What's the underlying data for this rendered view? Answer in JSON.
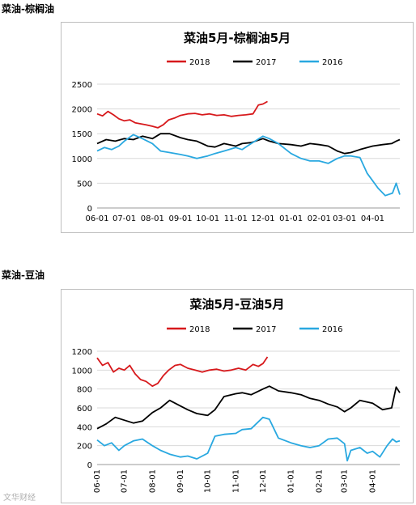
{
  "page": {
    "heading_1": "菜油-棕榈油",
    "heading_2": "菜油-豆油",
    "watermark": "文华财经"
  },
  "colors": {
    "2018": "#d7191c",
    "2017": "#000000",
    "2016": "#29a8e0",
    "grid": "#d9d9d9"
  },
  "chart_data": [
    {
      "type": "line",
      "title": "菜油5月-棕榈油5月",
      "legend_position": "top",
      "grid": true,
      "ylim": [
        0,
        2500
      ],
      "yticks": [
        0,
        500,
        1000,
        1500,
        2000,
        2500
      ],
      "ytick_labels": [
        "0",
        "500",
        "1000",
        "1500",
        "2000",
        "2500"
      ],
      "xlim": [
        0,
        334
      ],
      "xticks": [
        0,
        30,
        61,
        92,
        122,
        153,
        183,
        214,
        245,
        273,
        304
      ],
      "xtick_labels": [
        "06-01",
        "07-01",
        "08-01",
        "09-01",
        "10-01",
        "11-01",
        "12-01",
        "01-01",
        "02-01",
        "03-01",
        "04-01"
      ],
      "x_unit": "days from 06-01",
      "series": [
        {
          "name": "2018",
          "color": "#d7191c",
          "x": [
            0,
            6,
            12,
            18,
            24,
            30,
            36,
            42,
            48,
            54,
            61,
            67,
            73,
            79,
            86,
            92,
            100,
            108,
            116,
            124,
            132,
            140,
            148,
            156,
            164,
            172,
            178,
            183,
            188
          ],
          "y": [
            1900,
            1860,
            1950,
            1880,
            1800,
            1760,
            1780,
            1720,
            1700,
            1680,
            1650,
            1620,
            1680,
            1780,
            1820,
            1870,
            1900,
            1910,
            1880,
            1900,
            1870,
            1880,
            1850,
            1870,
            1880,
            1900,
            2080,
            2100,
            2150
          ]
        },
        {
          "name": "2017",
          "color": "#000000",
          "x": [
            0,
            10,
            20,
            30,
            40,
            50,
            61,
            70,
            80,
            92,
            100,
            110,
            122,
            130,
            140,
            153,
            160,
            170,
            183,
            190,
            200,
            214,
            225,
            235,
            245,
            255,
            265,
            273,
            280,
            290,
            304,
            315,
            325,
            330,
            334
          ],
          "y": [
            1300,
            1380,
            1350,
            1400,
            1380,
            1450,
            1400,
            1500,
            1500,
            1420,
            1380,
            1350,
            1250,
            1230,
            1300,
            1250,
            1300,
            1320,
            1400,
            1350,
            1300,
            1280,
            1250,
            1300,
            1280,
            1250,
            1150,
            1100,
            1120,
            1180,
            1250,
            1280,
            1300,
            1350,
            1380
          ]
        },
        {
          "name": "2016",
          "color": "#29a8e0",
          "x": [
            0,
            8,
            16,
            24,
            30,
            40,
            50,
            61,
            70,
            80,
            92,
            100,
            110,
            122,
            130,
            140,
            153,
            160,
            170,
            183,
            190,
            200,
            214,
            225,
            235,
            245,
            255,
            265,
            273,
            280,
            290,
            298,
            304,
            310,
            318,
            326,
            330,
            334
          ],
          "y": [
            1150,
            1220,
            1180,
            1250,
            1350,
            1480,
            1400,
            1300,
            1150,
            1120,
            1080,
            1050,
            1000,
            1050,
            1100,
            1150,
            1220,
            1180,
            1300,
            1450,
            1400,
            1300,
            1100,
            1000,
            950,
            950,
            900,
            1000,
            1050,
            1050,
            1020,
            700,
            550,
            400,
            250,
            300,
            500,
            270
          ]
        }
      ]
    },
    {
      "type": "line",
      "title": "菜油5月-豆油5月",
      "legend_position": "top",
      "grid": true,
      "ylim": [
        0,
        1200
      ],
      "yticks": [
        0,
        200,
        400,
        600,
        800,
        1000,
        1200
      ],
      "ytick_labels": [
        "0",
        "200",
        "400",
        "600",
        "800",
        "1000",
        "1200"
      ],
      "xlim": [
        0,
        334
      ],
      "xticks": [
        0,
        30,
        61,
        92,
        122,
        153,
        183,
        214,
        245,
        273,
        304
      ],
      "xtick_labels": [
        "06-01",
        "07-01",
        "08-01",
        "09-01",
        "10-01",
        "11-01",
        "12-01",
        "01-01",
        "02-01",
        "03-01",
        "04-01"
      ],
      "x_unit": "days from 06-01",
      "series": [
        {
          "name": "2018",
          "color": "#d7191c",
          "x": [
            0,
            6,
            12,
            18,
            24,
            30,
            36,
            42,
            48,
            54,
            61,
            67,
            73,
            79,
            86,
            92,
            100,
            108,
            116,
            124,
            132,
            140,
            148,
            156,
            164,
            172,
            178,
            183,
            188
          ],
          "y": [
            1130,
            1050,
            1080,
            980,
            1020,
            1000,
            1050,
            960,
            900,
            880,
            830,
            860,
            940,
            1000,
            1050,
            1060,
            1020,
            1000,
            980,
            1000,
            1010,
            990,
            1000,
            1020,
            1000,
            1060,
            1040,
            1070,
            1140
          ]
        },
        {
          "name": "2017",
          "color": "#000000",
          "x": [
            0,
            10,
            20,
            30,
            40,
            50,
            61,
            70,
            80,
            92,
            100,
            110,
            122,
            130,
            140,
            153,
            160,
            170,
            183,
            190,
            200,
            214,
            225,
            235,
            245,
            255,
            265,
            273,
            280,
            290,
            304,
            315,
            325,
            330,
            334
          ],
          "y": [
            380,
            430,
            500,
            470,
            440,
            460,
            550,
            600,
            680,
            620,
            580,
            540,
            520,
            580,
            720,
            750,
            760,
            740,
            800,
            830,
            780,
            760,
            740,
            700,
            680,
            640,
            610,
            560,
            600,
            680,
            650,
            580,
            600,
            820,
            760
          ]
        },
        {
          "name": "2016",
          "color": "#29a8e0",
          "x": [
            0,
            8,
            16,
            24,
            30,
            40,
            50,
            61,
            70,
            80,
            92,
            100,
            110,
            122,
            130,
            140,
            153,
            160,
            170,
            183,
            190,
            200,
            214,
            225,
            235,
            245,
            255,
            265,
            273,
            276,
            280,
            290,
            298,
            304,
            312,
            320,
            326,
            330,
            334
          ],
          "y": [
            260,
            200,
            230,
            150,
            200,
            250,
            270,
            200,
            150,
            110,
            80,
            90,
            60,
            120,
            300,
            320,
            330,
            370,
            380,
            500,
            480,
            280,
            230,
            200,
            180,
            200,
            270,
            280,
            220,
            40,
            150,
            180,
            120,
            140,
            80,
            200,
            270,
            240,
            250
          ]
        }
      ]
    }
  ]
}
